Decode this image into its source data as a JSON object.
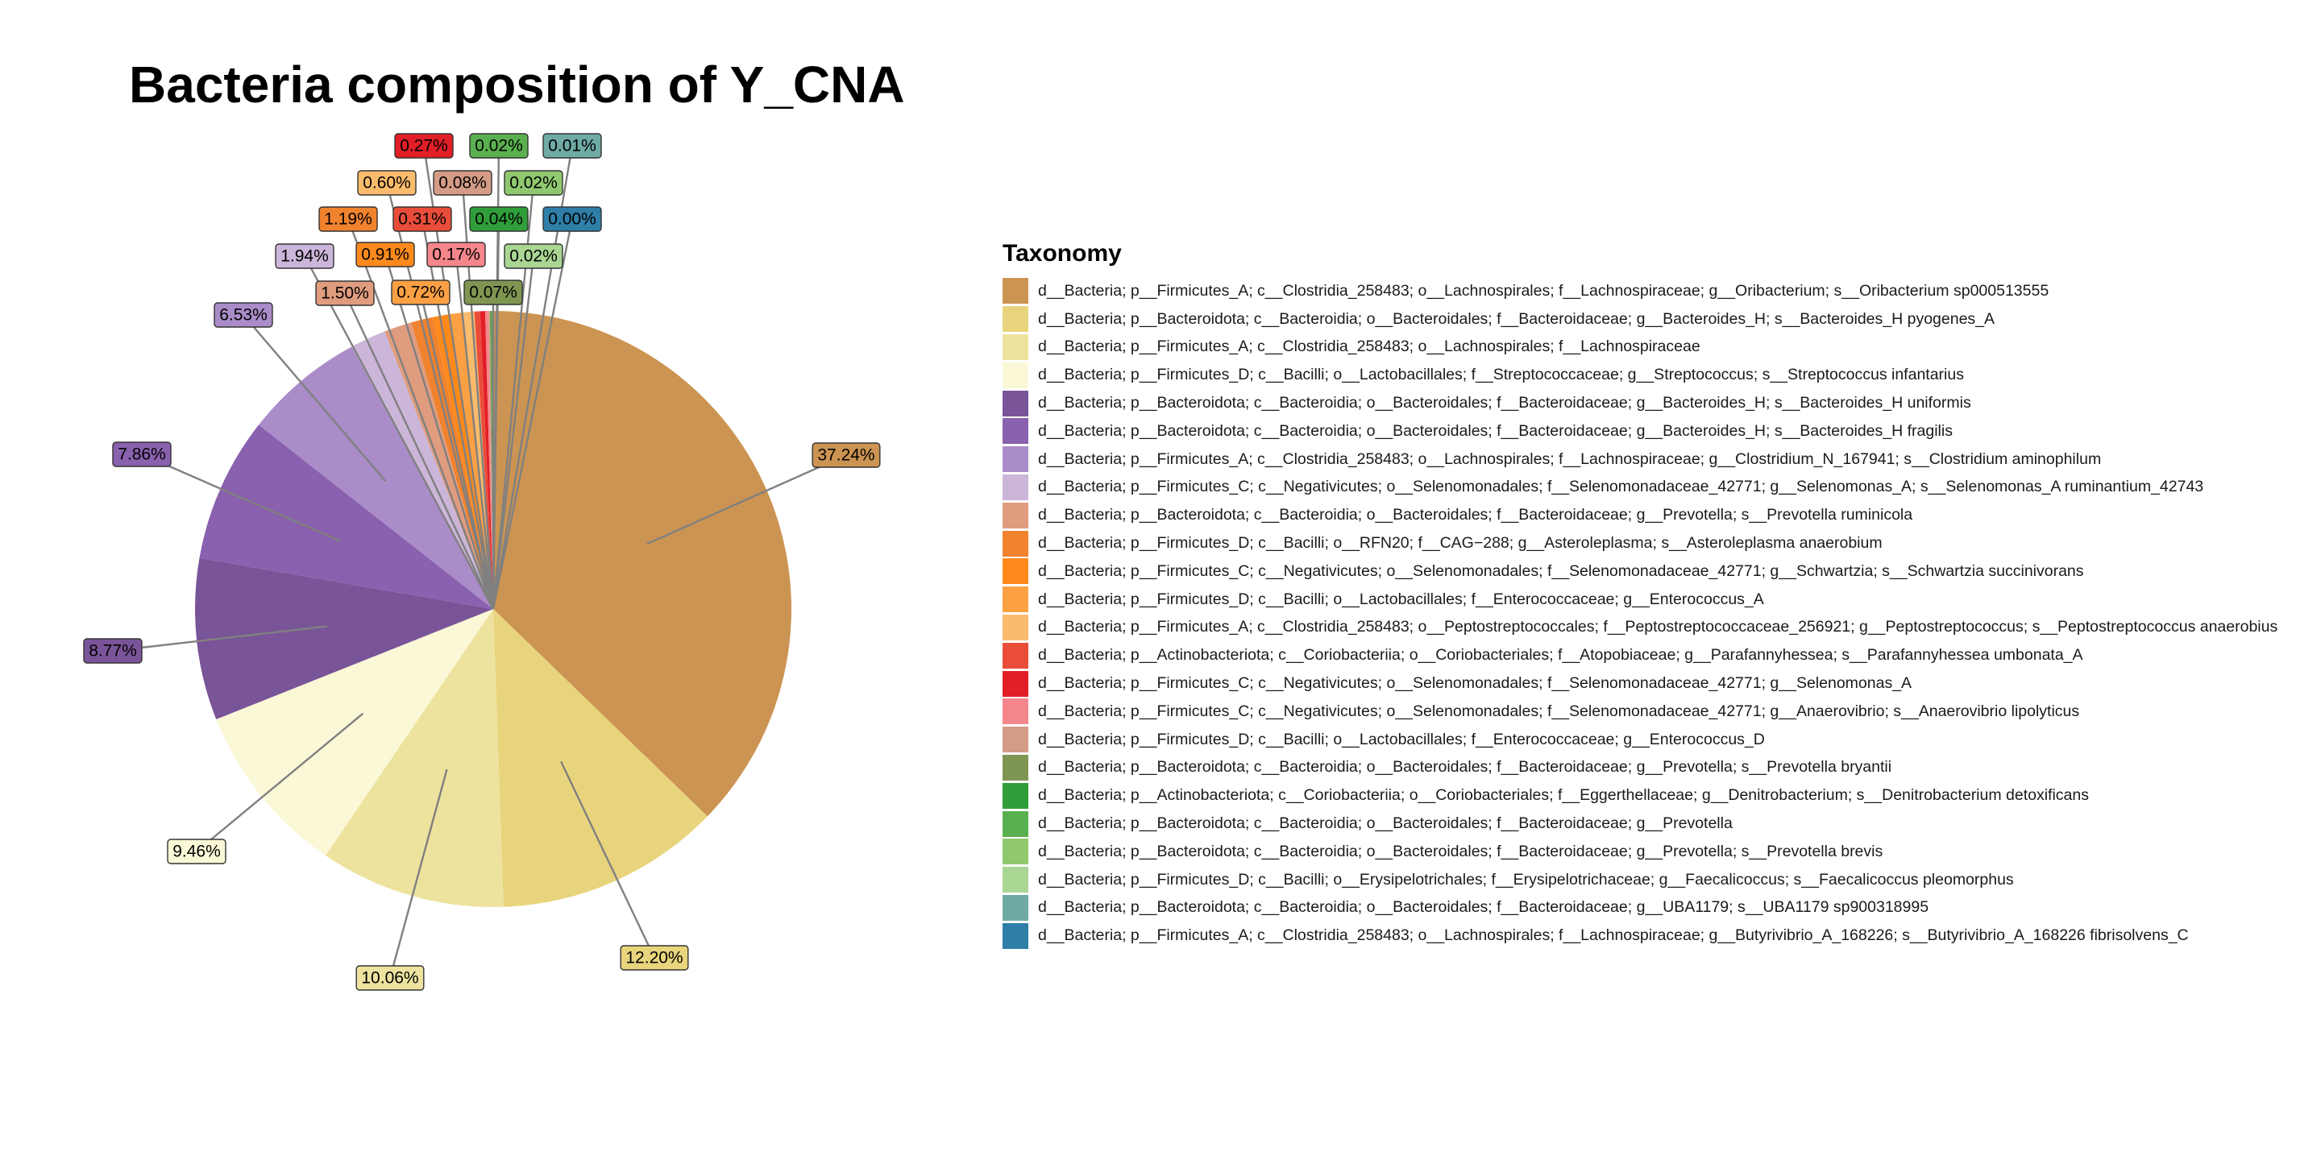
{
  "chart_data": {
    "type": "pie",
    "title": "Bacteria composition of Y_CNA",
    "legend_title": "Taxonomy",
    "legend_position": "right",
    "slices": [
      {
        "label": "d__Bacteria; p__Firmicutes_A; c__Clostridia_258483; o__Lachnospirales; f__Lachnospiraceae; g__Oribacterium; s__Oribacterium sp000513555",
        "value": 37.24,
        "value_label": "37.24%",
        "color": "#CC9452"
      },
      {
        "label": "d__Bacteria; p__Bacteroidota; c__Bacteroidia; o__Bacteroidales; f__Bacteroidaceae; g__Bacteroides_H; s__Bacteroides_H pyogenes_A",
        "value": 12.2,
        "value_label": "12.20%",
        "color": "#E8D47C"
      },
      {
        "label": "d__Bacteria; p__Firmicutes_A; c__Clostridia_258483; o__Lachnospirales; f__Lachnospiraceae",
        "value": 10.06,
        "value_label": "10.06%",
        "color": "#EDE39E"
      },
      {
        "label": "d__Bacteria; p__Firmicutes_D; c__Bacilli; o__Lactobacillales; f__Streptococcaceae; g__Streptococcus; s__Streptococcus infantarius",
        "value": 9.46,
        "value_label": "9.46%",
        "color": "#FAF8D6"
      },
      {
        "label": "d__Bacteria; p__Bacteroidota; c__Bacteroidia; o__Bacteroidales; f__Bacteroidaceae; g__Bacteroides_H; s__Bacteroides_H uniformis",
        "value": 8.77,
        "value_label": "8.77%",
        "color": "#7A5499"
      },
      {
        "label": "d__Bacteria; p__Bacteroidota; c__Bacteroidia; o__Bacteroidales; f__Bacteroidaceae; g__Bacteroides_H; s__Bacteroides_H fragilis",
        "value": 7.86,
        "value_label": "7.86%",
        "color": "#8961AE"
      },
      {
        "label": "d__Bacteria; p__Firmicutes_A; c__Clostridia_258483; o__Lachnospirales; f__Lachnospiraceae; g__Clostridium_N_167941; s__Clostridium aminophilum",
        "value": 6.53,
        "value_label": "6.53%",
        "color": "#A98CC8"
      },
      {
        "label": "d__Bacteria; p__Firmicutes_C; c__Negativicutes; o__Selenomonadales; f__Selenomonadaceae_42771; g__Selenomonas_A; s__Selenomonas_A ruminantium_42743",
        "value": 1.94,
        "value_label": "1.94%",
        "color": "#CBB6D9"
      },
      {
        "label": "d__Bacteria; p__Bacteroidota; c__Bacteroidia; o__Bacteroidales; f__Bacteroidaceae; g__Prevotella; s__Prevotella ruminicola",
        "value": 1.5,
        "value_label": "1.50%",
        "color": "#DF9C7E"
      },
      {
        "label": "d__Bacteria; p__Firmicutes_D; c__Bacilli; o__RFN20; f__CAG−288; g__Asteroleplasma; s__Asteroleplasma anaerobium",
        "value": 1.19,
        "value_label": "1.19%",
        "color": "#F1822E"
      },
      {
        "label": "d__Bacteria; p__Firmicutes_C; c__Negativicutes; o__Selenomonadales; f__Selenomonadaceae_42771; g__Schwartzia; s__Schwartzia succinivorans",
        "value": 0.91,
        "value_label": "0.91%",
        "color": "#FF8A1C"
      },
      {
        "label": "d__Bacteria; p__Firmicutes_D; c__Bacilli; o__Lactobacillales; f__Enterococcaceae; g__Enterococcus_A",
        "value": 0.72,
        "value_label": "0.72%",
        "color": "#FCA044"
      },
      {
        "label": "d__Bacteria; p__Firmicutes_A; c__Clostridia_258483; o__Peptostreptococcales; f__Peptostreptococcaceae_256921; g__Peptostreptococcus; s__Peptostreptococcus anaerobius",
        "value": 0.6,
        "value_label": "0.60%",
        "color": "#FABB6C"
      },
      {
        "label": "d__Bacteria; p__Actinobacteriota; c__Coriobacteriia; o__Coriobacteriales; f__Atopobiaceae; g__Parafannyhessea; s__Parafannyhessea umbonata_A",
        "value": 0.31,
        "value_label": "0.31%",
        "color": "#E94D3A"
      },
      {
        "label": "d__Bacteria; p__Firmicutes_C; c__Negativicutes; o__Selenomonadales; f__Selenomonadaceae_42771; g__Selenomonas_A",
        "value": 0.27,
        "value_label": "0.27%",
        "color": "#E21E26"
      },
      {
        "label": "d__Bacteria; p__Firmicutes_C; c__Negativicutes; o__Selenomonadales; f__Selenomonadaceae_42771; g__Anaerovibrio; s__Anaerovibrio lipolyticus",
        "value": 0.17,
        "value_label": "0.17%",
        "color": "#F4868C"
      },
      {
        "label": "d__Bacteria; p__Firmicutes_D; c__Bacilli; o__Lactobacillales; f__Enterococcaceae; g__Enterococcus_D",
        "value": 0.08,
        "value_label": "0.08%",
        "color": "#D49B86"
      },
      {
        "label": "d__Bacteria; p__Bacteroidota; c__Bacteroidia; o__Bacteroidales; f__Bacteroidaceae; g__Prevotella; s__Prevotella bryantii",
        "value": 0.07,
        "value_label": "0.07%",
        "color": "#7F9653"
      },
      {
        "label": "d__Bacteria; p__Actinobacteriota; c__Coriobacteriia; o__Coriobacteriales; f__Eggerthellaceae; g__Denitrobacterium; s__Denitrobacterium detoxificans",
        "value": 0.04,
        "value_label": "0.04%",
        "color": "#2F9E3A"
      },
      {
        "label": "d__Bacteria; p__Bacteroidota; c__Bacteroidia; o__Bacteroidales; f__Bacteroidaceae; g__Prevotella",
        "value": 0.02,
        "value_label": "0.02%",
        "color": "#5AB04E"
      },
      {
        "label": "d__Bacteria; p__Bacteroidota; c__Bacteroidia; o__Bacteroidales; f__Bacteroidaceae; g__Prevotella; s__Prevotella brevis",
        "value": 0.02,
        "value_label": "0.02%",
        "color": "#8FC86E"
      },
      {
        "label": "d__Bacteria; p__Firmicutes_D; c__Bacilli; o__Erysipelotrichales; f__Erysipelotrichaceae; g__Faecalicoccus; s__Faecalicoccus pleomorphus",
        "value": 0.02,
        "value_label": "0.02%",
        "color": "#A9D693"
      },
      {
        "label": "d__Bacteria; p__Bacteroidota; c__Bacteroidia; o__Bacteroidales; f__Bacteroidaceae; g__UBA1179; s__UBA1179 sp900318995",
        "value": 0.01,
        "value_label": "0.01%",
        "color": "#6FAAA4"
      },
      {
        "label": "d__Bacteria; p__Firmicutes_A; c__Clostridia_258483; o__Lachnospirales; f__Lachnospiraceae; g__Butyrivibrio_A_168226; s__Butyrivibrio_A_168226 fibrisolvens_C",
        "value": 0.0,
        "value_label": "0.00%",
        "color": "#2E7EA8"
      }
    ]
  }
}
